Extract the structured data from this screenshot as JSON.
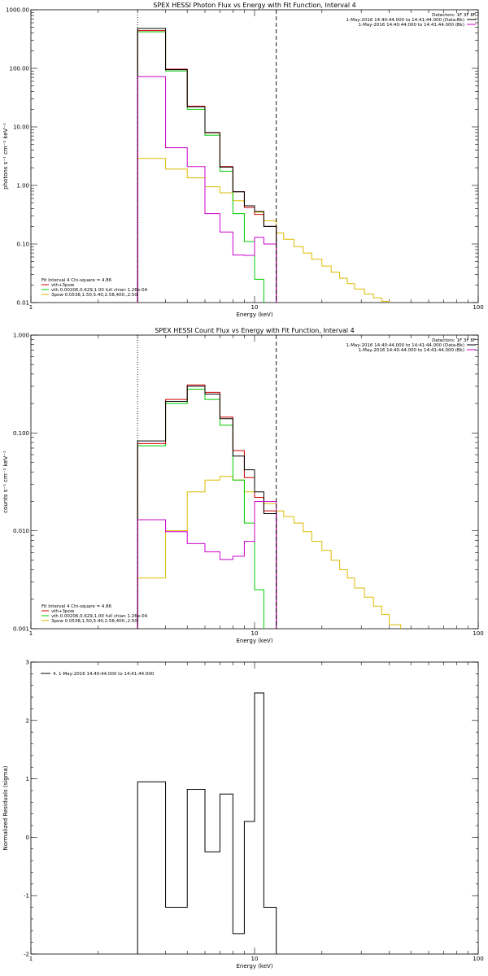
{
  "chart_data": [
    {
      "type": "line",
      "title": "SPEX HESSI Photon Flux vs Energy with Fit Function, Interval 4",
      "xlabel": "Energy (keV)",
      "ylabel": "photons s⁻¹ cm⁻² keV⁻¹",
      "xscale": "log",
      "yscale": "log",
      "xlim": [
        1,
        100
      ],
      "ylim": [
        0.01,
        1000
      ],
      "x_ticks": [
        1,
        10,
        100
      ],
      "x_tick_labels": [
        "1",
        "10",
        "100"
      ],
      "y_ticks": [
        0.01,
        0.1,
        1,
        10,
        100,
        1000
      ],
      "y_tick_labels": [
        "0.01",
        "0.10",
        "1.00",
        "10.00",
        "100.00",
        "1000.00"
      ],
      "vlines": [
        {
          "x": 3,
          "style": "dotted",
          "color": "#000000"
        },
        {
          "x": 12.5,
          "style": "dashed",
          "color": "#000000"
        }
      ],
      "legend_top": {
        "position": "top-right",
        "header": "Detectors: 1F 3F 8F",
        "entries": [
          {
            "label": "1-May-2016 14:40:44.000 to 14:41:44.000 (Data-Bk)",
            "color": "#000000"
          },
          {
            "label": "1-May-2016 14:40:44.000 to 14:41:44.000 (Bk)",
            "color": "#cc00cc"
          }
        ]
      },
      "legend_bottom": {
        "position": "bottom-left",
        "header": "Fit Interval 4   Chi-square = 4.86",
        "entries": [
          {
            "label": "vth+3pow",
            "color": "#cc0000"
          },
          {
            "label": "vth 0.00206,0.629,1.00  full chian 1.26e-04",
            "color": "#00cc00"
          },
          {
            "label": "3pow 0.0538,1.50,5.40,2.58,400.,2.50",
            "color": "#ddbb00"
          }
        ]
      },
      "bin_edges_data": [
        3,
        4,
        5,
        6,
        7,
        8,
        9,
        10,
        11,
        12.5
      ],
      "bin_edges_full": [
        3,
        4,
        5,
        6,
        7,
        8,
        9,
        10,
        11,
        12.5,
        13.5,
        15,
        16.5,
        18,
        20,
        22,
        24,
        26,
        28,
        31,
        34,
        37,
        40,
        45
      ],
      "series": [
        {
          "name": "1-May-2016 14:40:44.000 to 14:41:44.000 (Data-Bk)",
          "color": "#000000",
          "edges": "data",
          "values": [
            480,
            95,
            22,
            8,
            2.05,
            0.78,
            0.45,
            0.36,
            0.2
          ]
        },
        {
          "name": "1-May-2016 14:40:44.000 to 14:41:44.000 (Bk)",
          "color": "#cc00cc",
          "edges": "data",
          "values": [
            72,
            4.4,
            2.1,
            0.33,
            0.16,
            0.065,
            0.064,
            0.13,
            0.1
          ]
        },
        {
          "name": "vth+3pow",
          "color": "#cc0000",
          "edges": "data",
          "values": [
            440,
            97,
            22.5,
            7.9,
            2.1,
            0.78,
            0.42,
            0.32,
            0.2
          ]
        },
        {
          "name": "vth 0.00206,0.629,1.00  full chian 1.26e-04",
          "color": "#00cc00",
          "edges": "data",
          "values": [
            420,
            90,
            20,
            7.2,
            1.75,
            0.33,
            0.11,
            0.025,
            0.007
          ]
        },
        {
          "name": "3pow 0.0538,1.50,5.40,2.58,400.,2.50",
          "color": "#ddbb00",
          "edges": "full",
          "values": [
            2.9,
            1.9,
            1.35,
            0.95,
            0.75,
            0.55,
            0.45,
            0.35,
            0.25,
            0.155,
            0.12,
            0.09,
            0.07,
            0.055,
            0.042,
            0.033,
            0.026,
            0.021,
            0.017,
            0.014,
            0.012,
            0.0105,
            0.009
          ]
        }
      ]
    },
    {
      "type": "line",
      "title": "SPEX HESSI Count Flux vs Energy with Fit Function, Interval 4",
      "xlabel": "Energy (keV)",
      "ylabel": "counts s⁻¹ cm⁻² keV⁻¹",
      "xscale": "log",
      "yscale": "log",
      "xlim": [
        1,
        100
      ],
      "ylim": [
        0.001,
        1
      ],
      "x_ticks": [
        1,
        10,
        100
      ],
      "x_tick_labels": [
        "1",
        "10",
        "100"
      ],
      "y_ticks": [
        0.001,
        0.01,
        0.1,
        1
      ],
      "y_tick_labels": [
        "0.001",
        "0.010",
        "0.100",
        "1.000"
      ],
      "vlines": [
        {
          "x": 3,
          "style": "dotted",
          "color": "#000000"
        },
        {
          "x": 12.5,
          "style": "dashed",
          "color": "#000000"
        }
      ],
      "legend_top": {
        "position": "top-right",
        "header": "Detectors: 1F 3F 8F",
        "entries": [
          {
            "label": "1-May-2016 14:40:44.000 to 14:41:44.000 (Data-Bk)",
            "color": "#000000"
          },
          {
            "label": "1-May-2016 14:40:44.000 to 14:41:44.000 (Bk)",
            "color": "#cc00cc"
          }
        ]
      },
      "legend_bottom": {
        "position": "bottom-left",
        "header": "Fit Interval 4   Chi-square = 4.86",
        "entries": [
          {
            "label": "vth+3pow",
            "color": "#cc0000"
          },
          {
            "label": "vth 0.00206,0.629,1.00  full chian 1.26e-04",
            "color": "#00cc00"
          },
          {
            "label": "3pow 0.0538,1.50,5.40,2.58,400.,2.50",
            "color": "#ddbb00"
          }
        ]
      },
      "bin_edges_data": [
        3,
        4,
        5,
        6,
        7,
        8,
        9,
        10,
        11,
        12.5
      ],
      "bin_edges_full": [
        3,
        4,
        5,
        6,
        7,
        8,
        9,
        10,
        11,
        12.5,
        13.5,
        15,
        16.5,
        18,
        20,
        22,
        24,
        26,
        28,
        31,
        34,
        37,
        40,
        45
      ],
      "series": [
        {
          "name": "1-May-2016 14:40:44.000 to 14:41:44.000 (Data-Bk)",
          "color": "#000000",
          "edges": "data",
          "values": [
            0.083,
            0.21,
            0.3,
            0.25,
            0.14,
            0.058,
            0.042,
            0.025,
            0.015
          ]
        },
        {
          "name": "1-May-2016 14:40:44.000 to 14:41:44.000 (Bk)",
          "color": "#cc00cc",
          "edges": "data",
          "values": [
            0.013,
            0.0098,
            0.0074,
            0.0061,
            0.0051,
            0.0055,
            0.0078,
            0.02,
            0.02
          ]
        },
        {
          "name": "vth+3pow",
          "color": "#cc0000",
          "edges": "data",
          "values": [
            0.078,
            0.22,
            0.31,
            0.26,
            0.145,
            0.066,
            0.035,
            0.022,
            0.016
          ]
        },
        {
          "name": "vth 0.00206,0.629,1.00  full chian 1.26e-04",
          "color": "#00cc00",
          "edges": "data",
          "values": [
            0.074,
            0.2,
            0.28,
            0.22,
            0.12,
            0.033,
            0.012,
            0.0025,
            0.0006
          ]
        },
        {
          "name": "3pow 0.0538,1.50,5.40,2.58,400.,2.50",
          "color": "#ddbb00",
          "edges": "full",
          "values": [
            0.0033,
            0.01,
            0.025,
            0.033,
            0.036,
            0.033,
            0.025,
            0.022,
            0.019,
            0.016,
            0.014,
            0.012,
            0.0098,
            0.0078,
            0.0063,
            0.005,
            0.004,
            0.0033,
            0.0026,
            0.0021,
            0.0017,
            0.0014,
            0.0011
          ]
        }
      ]
    },
    {
      "type": "line",
      "title": "",
      "xlabel": "Energy (keV)",
      "ylabel": "Normalized Residuals (sigma)",
      "xscale": "log",
      "yscale": "linear",
      "xlim": [
        1,
        100
      ],
      "ylim": [
        -2,
        3
      ],
      "x_ticks": [
        1,
        10,
        100
      ],
      "x_tick_labels": [
        "1",
        "10",
        "100"
      ],
      "y_ticks": [
        -2,
        -1,
        0,
        1,
        2,
        3
      ],
      "y_tick_labels": [
        "-2",
        "-1",
        "0",
        "1",
        "2",
        "3"
      ],
      "legend_top": {
        "position": "top-left",
        "header": "",
        "entries": [
          {
            "label": "4. 1-May-2016 14:40:44.000 to 14:41:44.000",
            "color": "#000000"
          }
        ]
      },
      "bin_edges_data": [
        3,
        4,
        5,
        6,
        7,
        8,
        9,
        10,
        11,
        12.5
      ],
      "series": [
        {
          "name": "4. 1-May-2016 14:40:44.000 to 14:41:44.000",
          "color": "#000000",
          "edges": "data",
          "values": [
            0.95,
            -1.2,
            0.82,
            -0.25,
            0.74,
            -1.65,
            0.27,
            2.47,
            -1.2
          ],
          "close_to": -2
        }
      ]
    }
  ]
}
